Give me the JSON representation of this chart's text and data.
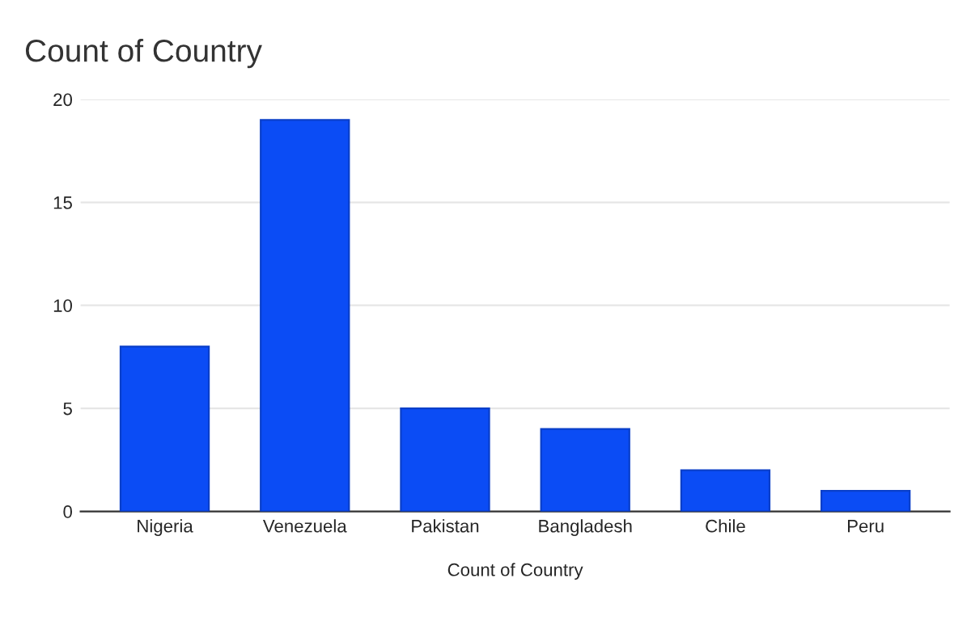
{
  "chart_data": {
    "type": "bar",
    "title": "Count of Country",
    "xlabel": "Count of Country",
    "categories": [
      "Nigeria",
      "Venezuela",
      "Pakistan",
      "Bangladesh",
      "Chile",
      "Peru"
    ],
    "values": [
      8,
      19,
      5,
      4,
      2,
      1
    ],
    "color": "#0b4cf5",
    "ylim": [
      0,
      20
    ],
    "yticks": [
      0,
      5,
      10,
      15,
      20
    ],
    "grid": "y"
  }
}
